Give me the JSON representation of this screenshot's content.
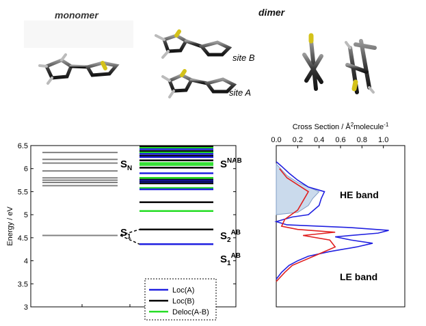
{
  "molecules": {
    "monomer_title": "monomer",
    "dimer_title": "dimer",
    "site_b_label": "site B",
    "site_a_label": "site A"
  },
  "energy_diagram": {
    "ylabel": "Energy / eV",
    "yticks": [
      "6.5",
      "6",
      "5.5",
      "5",
      "4.5",
      "4",
      "3.5",
      "3"
    ],
    "state_labels": {
      "sn": "S",
      "sn_sub": "N",
      "s1": "S",
      "s1_sub": "1",
      "snab": "S",
      "snab_sup": "N",
      "snab_tail": "AB",
      "s2ab": "S",
      "s2ab_sub": "2",
      "s2ab_sup": "AB",
      "s1ab": "S",
      "s1ab_sub": "1",
      "s1ab_sup": "AB"
    },
    "legend": [
      "Loc(A)",
      "Loc(B)",
      "Deloc(A-B)"
    ],
    "colors": {
      "loc_a": "#1f1fe0",
      "loc_b": "#000000",
      "deloc": "#22dd22",
      "monomer": "#808080"
    },
    "monomer_levels": [
      6.35,
      6.2,
      6.12,
      5.95,
      5.8,
      5.75,
      5.7,
      5.63,
      4.55
    ],
    "dimer_levels": [
      {
        "e": 6.48,
        "c": "loc_b"
      },
      {
        "e": 6.45,
        "c": "deloc"
      },
      {
        "e": 6.42,
        "c": "loc_a"
      },
      {
        "e": 6.38,
        "c": "loc_b"
      },
      {
        "e": 6.35,
        "c": "deloc"
      },
      {
        "e": 6.32,
        "c": "loc_a"
      },
      {
        "e": 6.28,
        "c": "loc_b"
      },
      {
        "e": 6.25,
        "c": "loc_a"
      },
      {
        "e": 6.18,
        "c": "loc_b"
      },
      {
        "e": 6.12,
        "c": "deloc"
      },
      {
        "e": 6.08,
        "c": "deloc"
      },
      {
        "e": 6.02,
        "c": "loc_b"
      },
      {
        "e": 5.9,
        "c": "loc_a"
      },
      {
        "e": 5.8,
        "c": "deloc"
      },
      {
        "e": 5.76,
        "c": "loc_b"
      },
      {
        "e": 5.74,
        "c": "loc_a"
      },
      {
        "e": 5.72,
        "c": "loc_b"
      },
      {
        "e": 5.7,
        "c": "loc_a"
      },
      {
        "e": 5.68,
        "c": "loc_b"
      },
      {
        "e": 5.58,
        "c": "deloc"
      },
      {
        "e": 5.55,
        "c": "loc_a"
      },
      {
        "e": 5.27,
        "c": "loc_b"
      },
      {
        "e": 5.08,
        "c": "deloc"
      },
      {
        "e": 4.68,
        "c": "loc_b"
      },
      {
        "e": 4.36,
        "c": "loc_a"
      }
    ]
  },
  "cross_section": {
    "title": "Cross Section / Å",
    "title_sup": "2",
    "title_tail": "molecule",
    "title_tail_sup": "-1",
    "xticks": [
      "0.0",
      "0.2",
      "0.4",
      "0.6",
      "0.8",
      "1.0"
    ],
    "he_band": "HE band",
    "le_band": "LE band",
    "blue": [
      [
        3.6,
        0.0
      ],
      [
        3.75,
        0.05
      ],
      [
        3.9,
        0.12
      ],
      [
        4.0,
        0.2
      ],
      [
        4.1,
        0.3
      ],
      [
        4.2,
        0.5
      ],
      [
        4.3,
        0.75
      ],
      [
        4.38,
        0.9
      ],
      [
        4.45,
        0.7
      ],
      [
        4.52,
        0.55
      ],
      [
        4.6,
        0.95
      ],
      [
        4.66,
        1.05
      ],
      [
        4.72,
        0.7
      ],
      [
        4.78,
        0.1
      ],
      [
        4.85,
        0.0
      ],
      [
        4.95,
        0.15
      ],
      [
        5.0,
        0.3
      ],
      [
        5.2,
        0.4
      ],
      [
        5.35,
        0.42
      ],
      [
        5.5,
        0.45
      ],
      [
        5.6,
        0.3
      ],
      [
        5.75,
        0.2
      ],
      [
        5.9,
        0.12
      ],
      [
        6.05,
        0.05
      ],
      [
        6.15,
        0.0
      ]
    ],
    "red": [
      [
        3.55,
        0.0
      ],
      [
        3.75,
        0.08
      ],
      [
        3.9,
        0.15
      ],
      [
        4.0,
        0.25
      ],
      [
        4.15,
        0.4
      ],
      [
        4.3,
        0.55
      ],
      [
        4.45,
        0.5
      ],
      [
        4.55,
        0.25
      ],
      [
        4.62,
        0.55
      ],
      [
        4.68,
        0.2
      ],
      [
        4.75,
        0.05
      ],
      [
        4.9,
        0.08
      ],
      [
        5.1,
        0.2
      ],
      [
        5.3,
        0.25
      ],
      [
        5.5,
        0.3
      ],
      [
        5.65,
        0.2
      ],
      [
        5.8,
        0.1
      ],
      [
        6.0,
        0.03
      ]
    ],
    "fill": [
      [
        5.0,
        0.0
      ],
      [
        5.05,
        0.2
      ],
      [
        5.2,
        0.3
      ],
      [
        5.35,
        0.34
      ],
      [
        5.5,
        0.4
      ],
      [
        5.6,
        0.3
      ],
      [
        5.7,
        0.2
      ],
      [
        5.85,
        0.1
      ],
      [
        6.0,
        0.04
      ],
      [
        6.1,
        0.0
      ]
    ]
  }
}
